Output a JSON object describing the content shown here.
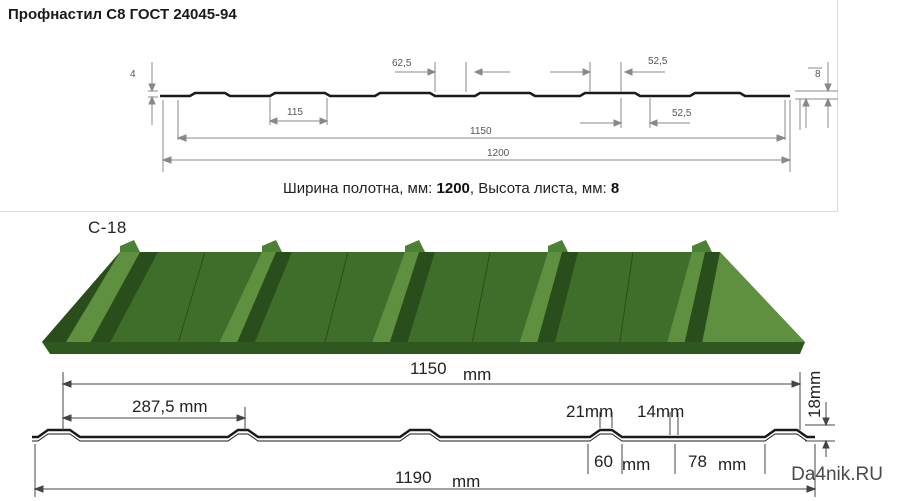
{
  "top": {
    "title": "Профнастил С8 ГОСТ 24045-94",
    "dims": {
      "d4": "4",
      "d62_5": "62,5",
      "d52_5_top": "52,5",
      "d52_5_bottom": "52,5",
      "d115": "115",
      "d1150": "1150",
      "d1200": "1200",
      "d8": "8"
    },
    "spec": {
      "width_label": "Ширина полотна, мм: ",
      "width_value": "1200",
      "sep": ", ",
      "height_label": "Высота листа, мм: ",
      "height_value": "8"
    }
  },
  "bottom": {
    "label": "С-18",
    "dims": {
      "d1150": "1150",
      "d1150_unit": "mm",
      "d287_5": "287,5 mm",
      "d18": "18mm",
      "d21": "21mm",
      "d14": "14mm",
      "d60": "60",
      "d60_unit": "mm",
      "d78": "78",
      "d78_unit": "mm",
      "d1190": "1190",
      "d1190_unit": "mm"
    }
  },
  "watermark": "Da4nik.RU",
  "colors": {
    "sheet_green": "#3f6e2b",
    "sheet_light": "#5f9040",
    "sheet_dark": "#2a4d1c",
    "line": "#1a1a1a"
  }
}
